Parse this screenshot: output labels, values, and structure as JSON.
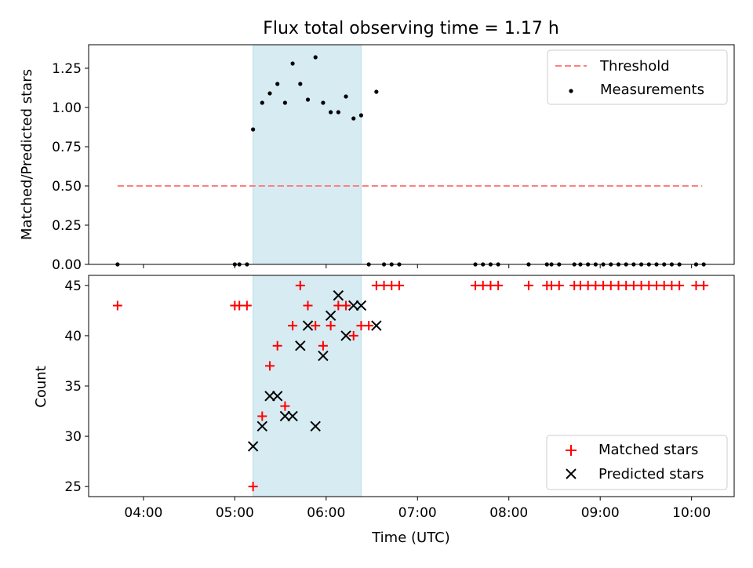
{
  "title": "Flux total observing time = 1.17 h",
  "chart_data": [
    {
      "type": "scatter",
      "ylabel": "Matched/Predicted stars",
      "xlabel": "",
      "xlim": [
        "03:24",
        "10:28"
      ],
      "ylim": [
        0,
        1.4
      ],
      "yticks": [
        0,
        0.25,
        0.5,
        0.75,
        1.0,
        1.25
      ],
      "ytick_labels": [
        "0.00",
        "0.25",
        "0.50",
        "0.75",
        "1.00",
        "1.25"
      ],
      "shaded_interval": [
        "05:12",
        "06:23"
      ],
      "legend": {
        "placement": "top-right",
        "entries": [
          "Threshold",
          "Measurements"
        ]
      },
      "series": [
        {
          "name": "Threshold",
          "kind": "dashed-line",
          "color": "#ff7f7f",
          "points": [
            [
              "03:43",
              0.5
            ],
            [
              "10:07",
              0.5
            ]
          ]
        },
        {
          "name": "Measurements",
          "kind": "dot",
          "color": "#000000",
          "points": [
            [
              "03:43",
              0
            ],
            [
              "05:00",
              0
            ],
            [
              "05:03",
              0
            ],
            [
              "05:08",
              0
            ],
            [
              "05:12",
              0.86
            ],
            [
              "05:18",
              1.03
            ],
            [
              "05:23",
              1.09
            ],
            [
              "05:28",
              1.15
            ],
            [
              "05:33",
              1.03
            ],
            [
              "05:38",
              1.28
            ],
            [
              "05:43",
              1.15
            ],
            [
              "05:48",
              1.05
            ],
            [
              "05:53",
              1.32
            ],
            [
              "05:58",
              1.03
            ],
            [
              "06:03",
              0.97
            ],
            [
              "06:08",
              0.97
            ],
            [
              "06:13",
              1.07
            ],
            [
              "06:18",
              0.93
            ],
            [
              "06:23",
              0.95
            ],
            [
              "06:28",
              0
            ],
            [
              "06:33",
              1.1
            ],
            [
              "06:38",
              0
            ],
            [
              "06:43",
              0
            ],
            [
              "06:48",
              0
            ],
            [
              "07:38",
              0
            ],
            [
              "07:43",
              0
            ],
            [
              "07:48",
              0
            ],
            [
              "07:53",
              0
            ],
            [
              "08:13",
              0
            ],
            [
              "08:25",
              0
            ],
            [
              "08:28",
              0
            ],
            [
              "08:33",
              0
            ],
            [
              "08:43",
              0
            ],
            [
              "08:47",
              0
            ],
            [
              "08:52",
              0
            ],
            [
              "08:57",
              0
            ],
            [
              "09:02",
              0
            ],
            [
              "09:07",
              0
            ],
            [
              "09:12",
              0
            ],
            [
              "09:17",
              0
            ],
            [
              "09:22",
              0
            ],
            [
              "09:27",
              0
            ],
            [
              "09:32",
              0
            ],
            [
              "09:37",
              0
            ],
            [
              "09:42",
              0
            ],
            [
              "09:47",
              0
            ],
            [
              "09:52",
              0
            ],
            [
              "10:03",
              0
            ],
            [
              "10:08",
              0
            ]
          ]
        }
      ]
    },
    {
      "type": "scatter",
      "ylabel": "Count",
      "xlabel": "Time (UTC)",
      "xlim": [
        "03:24",
        "10:28"
      ],
      "ylim": [
        24,
        46
      ],
      "yticks": [
        25,
        30,
        35,
        40,
        45
      ],
      "ytick_labels": [
        "25",
        "30",
        "35",
        "40",
        "45"
      ],
      "xticks": [
        "04:00",
        "05:00",
        "06:00",
        "07:00",
        "08:00",
        "09:00",
        "10:00"
      ],
      "xtick_labels": [
        "04:00",
        "05:00",
        "06:00",
        "07:00",
        "08:00",
        "09:00",
        "10:00"
      ],
      "shaded_interval": [
        "05:12",
        "06:23"
      ],
      "legend": {
        "placement": "bottom-right",
        "entries": [
          "Matched stars",
          "Predicted stars"
        ]
      },
      "series": [
        {
          "name": "Matched stars",
          "kind": "plus",
          "color": "#ff0000",
          "points": [
            [
              "03:43",
              43
            ],
            [
              "05:00",
              43
            ],
            [
              "05:03",
              43
            ],
            [
              "05:08",
              43
            ],
            [
              "05:12",
              25
            ],
            [
              "05:18",
              32
            ],
            [
              "05:23",
              37
            ],
            [
              "05:28",
              39
            ],
            [
              "05:33",
              33
            ],
            [
              "05:38",
              41
            ],
            [
              "05:43",
              45
            ],
            [
              "05:48",
              43
            ],
            [
              "05:53",
              41
            ],
            [
              "05:58",
              39
            ],
            [
              "06:03",
              41
            ],
            [
              "06:08",
              43
            ],
            [
              "06:13",
              43
            ],
            [
              "06:18",
              40
            ],
            [
              "06:23",
              41
            ],
            [
              "06:28",
              41
            ],
            [
              "06:33",
              45
            ],
            [
              "06:38",
              45
            ],
            [
              "06:43",
              45
            ],
            [
              "06:48",
              45
            ],
            [
              "07:38",
              45
            ],
            [
              "07:43",
              45
            ],
            [
              "07:48",
              45
            ],
            [
              "07:53",
              45
            ],
            [
              "08:13",
              45
            ],
            [
              "08:25",
              45
            ],
            [
              "08:28",
              45
            ],
            [
              "08:33",
              45
            ],
            [
              "08:43",
              45
            ],
            [
              "08:47",
              45
            ],
            [
              "08:52",
              45
            ],
            [
              "08:57",
              45
            ],
            [
              "09:02",
              45
            ],
            [
              "09:07",
              45
            ],
            [
              "09:12",
              45
            ],
            [
              "09:17",
              45
            ],
            [
              "09:22",
              45
            ],
            [
              "09:27",
              45
            ],
            [
              "09:32",
              45
            ],
            [
              "09:37",
              45
            ],
            [
              "09:42",
              45
            ],
            [
              "09:47",
              45
            ],
            [
              "09:52",
              45
            ],
            [
              "10:03",
              45
            ],
            [
              "10:08",
              45
            ]
          ]
        },
        {
          "name": "Predicted stars",
          "kind": "x",
          "color": "#000000",
          "points": [
            [
              "05:12",
              29
            ],
            [
              "05:18",
              31
            ],
            [
              "05:23",
              34
            ],
            [
              "05:28",
              34
            ],
            [
              "05:33",
              32
            ],
            [
              "05:38",
              32
            ],
            [
              "05:43",
              39
            ],
            [
              "05:48",
              41
            ],
            [
              "05:53",
              31
            ],
            [
              "05:58",
              38
            ],
            [
              "06:03",
              42
            ],
            [
              "06:08",
              44
            ],
            [
              "06:13",
              40
            ],
            [
              "06:18",
              43
            ],
            [
              "06:23",
              43
            ],
            [
              "06:33",
              41
            ]
          ]
        }
      ]
    }
  ]
}
